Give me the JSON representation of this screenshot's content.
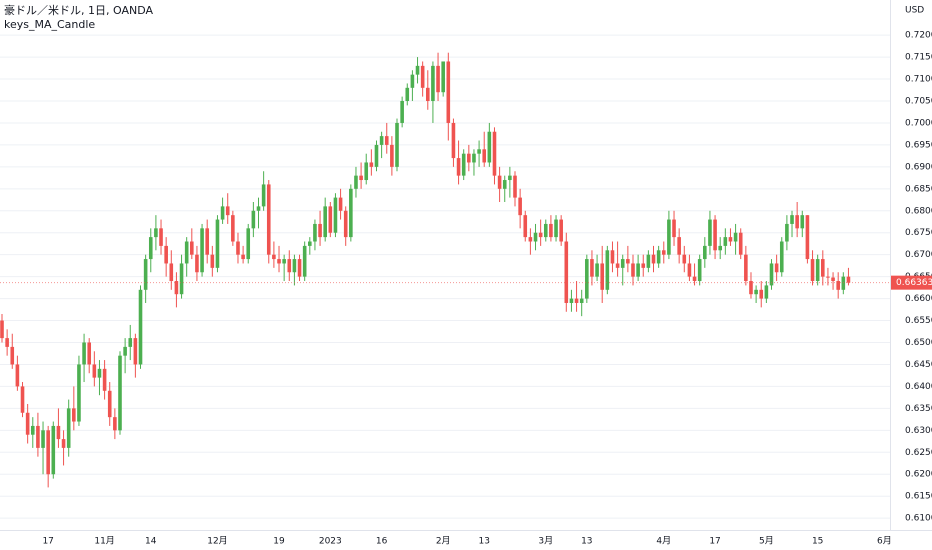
{
  "chart_data": {
    "type": "candlestick",
    "title": "豪ドル／米ドル, 1日, OANDA",
    "subtitle": "keys_MA_Candle",
    "y_axis_label": "USD",
    "up_color": "#4caf50",
    "down_color": "#ef5350",
    "grid": true,
    "ylim": [
      0.6073,
      0.728
    ],
    "yticks": [
      {
        "value": 0.61,
        "label": "0.61000"
      },
      {
        "value": 0.615,
        "label": "0.61500"
      },
      {
        "value": 0.62,
        "label": "0.62000"
      },
      {
        "value": 0.625,
        "label": "0.62500"
      },
      {
        "value": 0.63,
        "label": "0.63000"
      },
      {
        "value": 0.635,
        "label": "0.63500"
      },
      {
        "value": 0.64,
        "label": "0.64000"
      },
      {
        "value": 0.645,
        "label": "0.64500"
      },
      {
        "value": 0.65,
        "label": "0.65000"
      },
      {
        "value": 0.655,
        "label": "0.65500"
      },
      {
        "value": 0.66,
        "label": "0.66000"
      },
      {
        "value": 0.665,
        "label": "0.66500"
      },
      {
        "value": 0.67,
        "label": "0.67000"
      },
      {
        "value": 0.675,
        "label": "0.67500"
      },
      {
        "value": 0.68,
        "label": "0.68000"
      },
      {
        "value": 0.685,
        "label": "0.68500"
      },
      {
        "value": 0.69,
        "label": "0.69000"
      },
      {
        "value": 0.695,
        "label": "0.69500"
      },
      {
        "value": 0.7,
        "label": "0.70000"
      },
      {
        "value": 0.705,
        "label": "0.70500"
      },
      {
        "value": 0.71,
        "label": "0.71000"
      },
      {
        "value": 0.715,
        "label": "0.71500"
      },
      {
        "value": 0.72,
        "label": "0.72000"
      }
    ],
    "categories": [
      null,
      null,
      null,
      null,
      null,
      null,
      null,
      null,
      null,
      "17",
      null,
      null,
      null,
      null,
      null,
      null,
      null,
      null,
      null,
      null,
      "11月",
      null,
      null,
      null,
      null,
      null,
      null,
      null,
      null,
      "14",
      null,
      null,
      null,
      null,
      null,
      null,
      null,
      null,
      null,
      null,
      null,
      null,
      "12月",
      null,
      null,
      null,
      null,
      null,
      null,
      null,
      null,
      null,
      null,
      null,
      "19",
      null,
      null,
      null,
      null,
      null,
      null,
      null,
      null,
      null,
      "2023",
      null,
      null,
      null,
      null,
      null,
      null,
      null,
      null,
      null,
      "16",
      null,
      null,
      null,
      null,
      null,
      null,
      null,
      null,
      null,
      null,
      null,
      "2月",
      null,
      null,
      null,
      null,
      null,
      null,
      null,
      "13",
      null,
      null,
      null,
      null,
      null,
      null,
      null,
      null,
      null,
      null,
      null,
      "3月",
      null,
      null,
      null,
      null,
      null,
      null,
      null,
      "13",
      null,
      null,
      null,
      null,
      null,
      null,
      null,
      null,
      null,
      null,
      null,
      null,
      null,
      null,
      "4月",
      null,
      null,
      null,
      null,
      null,
      null,
      null,
      null,
      null,
      "17",
      null,
      null,
      null,
      null,
      null,
      null,
      null,
      null,
      null,
      "5月",
      null,
      null,
      null,
      null,
      null,
      null,
      null,
      null,
      null,
      "15",
      null,
      null,
      null,
      null,
      null,
      null,
      null,
      null,
      null,
      null,
      null,
      null,
      "6月"
    ],
    "candles": [
      [
        0.655,
        0.6565,
        0.65,
        0.651
      ],
      [
        0.651,
        0.653,
        0.647,
        0.649
      ],
      [
        0.649,
        0.652,
        0.644,
        0.645
      ],
      [
        0.645,
        0.647,
        0.639,
        0.64
      ],
      [
        0.64,
        0.641,
        0.633,
        0.634
      ],
      [
        0.634,
        0.636,
        0.627,
        0.629
      ],
      [
        0.629,
        0.633,
        0.626,
        0.631
      ],
      [
        0.631,
        0.634,
        0.624,
        0.626
      ],
      [
        0.626,
        0.632,
        0.62,
        0.63
      ],
      [
        0.63,
        0.631,
        0.617,
        0.62
      ],
      [
        0.62,
        0.632,
        0.619,
        0.631
      ],
      [
        0.631,
        0.635,
        0.626,
        0.628
      ],
      [
        0.628,
        0.63,
        0.622,
        0.626
      ],
      [
        0.626,
        0.637,
        0.624,
        0.635
      ],
      [
        0.635,
        0.64,
        0.63,
        0.632
      ],
      [
        0.632,
        0.647,
        0.631,
        0.645
      ],
      [
        0.645,
        0.652,
        0.641,
        0.65
      ],
      [
        0.65,
        0.651,
        0.643,
        0.645
      ],
      [
        0.645,
        0.648,
        0.64,
        0.642
      ],
      [
        0.642,
        0.646,
        0.638,
        0.644
      ],
      [
        0.644,
        0.646,
        0.637,
        0.639
      ],
      [
        0.639,
        0.641,
        0.631,
        0.633
      ],
      [
        0.633,
        0.635,
        0.628,
        0.63
      ],
      [
        0.63,
        0.648,
        0.629,
        0.647
      ],
      [
        0.647,
        0.651,
        0.643,
        0.649
      ],
      [
        0.649,
        0.654,
        0.646,
        0.651
      ],
      [
        0.651,
        0.652,
        0.642,
        0.645
      ],
      [
        0.645,
        0.663,
        0.644,
        0.662
      ],
      [
        0.662,
        0.67,
        0.659,
        0.669
      ],
      [
        0.669,
        0.676,
        0.666,
        0.674
      ],
      [
        0.674,
        0.679,
        0.671,
        0.676
      ],
      [
        0.676,
        0.678,
        0.67,
        0.672
      ],
      [
        0.672,
        0.674,
        0.665,
        0.668
      ],
      [
        0.668,
        0.671,
        0.662,
        0.664
      ],
      [
        0.664,
        0.666,
        0.658,
        0.661
      ],
      [
        0.661,
        0.67,
        0.66,
        0.668
      ],
      [
        0.668,
        0.674,
        0.665,
        0.673
      ],
      [
        0.673,
        0.676,
        0.669,
        0.67
      ],
      [
        0.67,
        0.672,
        0.664,
        0.666
      ],
      [
        0.666,
        0.677,
        0.665,
        0.676
      ],
      [
        0.676,
        0.678,
        0.668,
        0.67
      ],
      [
        0.67,
        0.672,
        0.665,
        0.667
      ],
      [
        0.667,
        0.679,
        0.666,
        0.678
      ],
      [
        0.678,
        0.683,
        0.677,
        0.681
      ],
      [
        0.681,
        0.684,
        0.677,
        0.679
      ],
      [
        0.679,
        0.68,
        0.672,
        0.673
      ],
      [
        0.673,
        0.675,
        0.668,
        0.67
      ],
      [
        0.67,
        0.672,
        0.668,
        0.669
      ],
      [
        0.669,
        0.677,
        0.668,
        0.676
      ],
      [
        0.676,
        0.682,
        0.674,
        0.68
      ],
      [
        0.68,
        0.683,
        0.676,
        0.681
      ],
      [
        0.681,
        0.689,
        0.68,
        0.686
      ],
      [
        0.686,
        0.687,
        0.668,
        0.67
      ],
      [
        0.67,
        0.673,
        0.667,
        0.669
      ],
      [
        0.669,
        0.672,
        0.666,
        0.668
      ],
      [
        0.668,
        0.67,
        0.664,
        0.669
      ],
      [
        0.669,
        0.671,
        0.664,
        0.666
      ],
      [
        0.666,
        0.67,
        0.663,
        0.669
      ],
      [
        0.669,
        0.67,
        0.664,
        0.665
      ],
      [
        0.665,
        0.673,
        0.664,
        0.672
      ],
      [
        0.672,
        0.674,
        0.67,
        0.673
      ],
      [
        0.673,
        0.678,
        0.671,
        0.677
      ],
      [
        0.677,
        0.68,
        0.672,
        0.674
      ],
      [
        0.674,
        0.683,
        0.673,
        0.681
      ],
      [
        0.681,
        0.682,
        0.674,
        0.675
      ],
      [
        0.675,
        0.684,
        0.674,
        0.683
      ],
      [
        0.683,
        0.685,
        0.678,
        0.68
      ],
      [
        0.68,
        0.681,
        0.672,
        0.674
      ],
      [
        0.674,
        0.686,
        0.673,
        0.685
      ],
      [
        0.685,
        0.69,
        0.683,
        0.688
      ],
      [
        0.688,
        0.691,
        0.685,
        0.687
      ],
      [
        0.687,
        0.693,
        0.686,
        0.691
      ],
      [
        0.691,
        0.694,
        0.688,
        0.69
      ],
      [
        0.69,
        0.696,
        0.689,
        0.695
      ],
      [
        0.695,
        0.698,
        0.692,
        0.697
      ],
      [
        0.697,
        0.7,
        0.693,
        0.695
      ],
      [
        0.695,
        0.697,
        0.688,
        0.69
      ],
      [
        0.69,
        0.701,
        0.689,
        0.7
      ],
      [
        0.7,
        0.706,
        0.699,
        0.705
      ],
      [
        0.705,
        0.709,
        0.704,
        0.708
      ],
      [
        0.708,
        0.712,
        0.705,
        0.711
      ],
      [
        0.711,
        0.715,
        0.709,
        0.713
      ],
      [
        0.713,
        0.714,
        0.706,
        0.708
      ],
      [
        0.708,
        0.712,
        0.703,
        0.705
      ],
      [
        0.705,
        0.714,
        0.7,
        0.713
      ],
      [
        0.713,
        0.716,
        0.705,
        0.707
      ],
      [
        0.707,
        0.714,
        0.706,
        0.714
      ],
      [
        0.714,
        0.716,
        0.696,
        0.7
      ],
      [
        0.7,
        0.701,
        0.69,
        0.692
      ],
      [
        0.692,
        0.696,
        0.686,
        0.688
      ],
      [
        0.688,
        0.694,
        0.687,
        0.693
      ],
      [
        0.693,
        0.695,
        0.689,
        0.691
      ],
      [
        0.691,
        0.694,
        0.688,
        0.693
      ],
      [
        0.693,
        0.696,
        0.69,
        0.694
      ],
      [
        0.694,
        0.698,
        0.69,
        0.691
      ],
      [
        0.691,
        0.7,
        0.69,
        0.698
      ],
      [
        0.698,
        0.699,
        0.686,
        0.688
      ],
      [
        0.688,
        0.69,
        0.682,
        0.685
      ],
      [
        0.685,
        0.688,
        0.682,
        0.687
      ],
      [
        0.687,
        0.69,
        0.683,
        0.688
      ],
      [
        0.688,
        0.689,
        0.681,
        0.683
      ],
      [
        0.683,
        0.685,
        0.676,
        0.679
      ],
      [
        0.679,
        0.68,
        0.673,
        0.674
      ],
      [
        0.674,
        0.676,
        0.67,
        0.673
      ],
      [
        0.673,
        0.677,
        0.671,
        0.675
      ],
      [
        0.675,
        0.678,
        0.672,
        0.674
      ],
      [
        0.674,
        0.678,
        0.673,
        0.677
      ],
      [
        0.677,
        0.679,
        0.673,
        0.674
      ],
      [
        0.674,
        0.679,
        0.673,
        0.678
      ],
      [
        0.678,
        0.679,
        0.672,
        0.673
      ],
      [
        0.673,
        0.675,
        0.657,
        0.659
      ],
      [
        0.659,
        0.662,
        0.657,
        0.66
      ],
      [
        0.66,
        0.664,
        0.657,
        0.659
      ],
      [
        0.659,
        0.662,
        0.656,
        0.66
      ],
      [
        0.66,
        0.67,
        0.659,
        0.669
      ],
      [
        0.669,
        0.671,
        0.663,
        0.665
      ],
      [
        0.665,
        0.67,
        0.664,
        0.668
      ],
      [
        0.668,
        0.672,
        0.659,
        0.662
      ],
      [
        0.662,
        0.672,
        0.661,
        0.671
      ],
      [
        0.671,
        0.673,
        0.666,
        0.668
      ],
      [
        0.668,
        0.673,
        0.665,
        0.667
      ],
      [
        0.667,
        0.67,
        0.663,
        0.669
      ],
      [
        0.669,
        0.672,
        0.666,
        0.668
      ],
      [
        0.668,
        0.67,
        0.663,
        0.665
      ],
      [
        0.665,
        0.67,
        0.664,
        0.668
      ],
      [
        0.668,
        0.67,
        0.665,
        0.667
      ],
      [
        0.667,
        0.671,
        0.666,
        0.67
      ],
      [
        0.67,
        0.672,
        0.666,
        0.668
      ],
      [
        0.668,
        0.672,
        0.667,
        0.671
      ],
      [
        0.671,
        0.673,
        0.668,
        0.67
      ],
      [
        0.67,
        0.68,
        0.669,
        0.678
      ],
      [
        0.678,
        0.68,
        0.672,
        0.674
      ],
      [
        0.674,
        0.676,
        0.668,
        0.67
      ],
      [
        0.67,
        0.672,
        0.666,
        0.668
      ],
      [
        0.668,
        0.67,
        0.664,
        0.665
      ],
      [
        0.665,
        0.668,
        0.663,
        0.664
      ],
      [
        0.664,
        0.67,
        0.663,
        0.669
      ],
      [
        0.669,
        0.674,
        0.667,
        0.672
      ],
      [
        0.672,
        0.68,
        0.67,
        0.678
      ],
      [
        0.678,
        0.679,
        0.669,
        0.671
      ],
      [
        0.671,
        0.674,
        0.669,
        0.672
      ],
      [
        0.672,
        0.676,
        0.67,
        0.674
      ],
      [
        0.674,
        0.676,
        0.672,
        0.673
      ],
      [
        0.673,
        0.677,
        0.67,
        0.675
      ],
      [
        0.675,
        0.676,
        0.669,
        0.67
      ],
      [
        0.67,
        0.672,
        0.663,
        0.664
      ],
      [
        0.664,
        0.666,
        0.66,
        0.661
      ],
      [
        0.661,
        0.663,
        0.659,
        0.662
      ],
      [
        0.662,
        0.664,
        0.658,
        0.66
      ],
      [
        0.66,
        0.664,
        0.659,
        0.663
      ],
      [
        0.663,
        0.669,
        0.662,
        0.668
      ],
      [
        0.668,
        0.67,
        0.664,
        0.666
      ],
      [
        0.666,
        0.674,
        0.665,
        0.673
      ],
      [
        0.673,
        0.679,
        0.671,
        0.677
      ],
      [
        0.677,
        0.68,
        0.674,
        0.679
      ],
      [
        0.679,
        0.682,
        0.674,
        0.676
      ],
      [
        0.676,
        0.68,
        0.674,
        0.679
      ],
      [
        0.679,
        0.679,
        0.668,
        0.669
      ],
      [
        0.669,
        0.671,
        0.663,
        0.664
      ],
      [
        0.664,
        0.67,
        0.663,
        0.669
      ],
      [
        0.669,
        0.671,
        0.663,
        0.665
      ],
      [
        0.665,
        0.667,
        0.663,
        0.6648
      ],
      [
        0.6648,
        0.666,
        0.662,
        0.664
      ],
      [
        0.664,
        0.666,
        0.66,
        0.662
      ],
      [
        0.662,
        0.666,
        0.661,
        0.665
      ],
      [
        0.665,
        0.667,
        0.663,
        0.66363
      ],
      null,
      null,
      null,
      null,
      null,
      null,
      null
    ]
  }
}
